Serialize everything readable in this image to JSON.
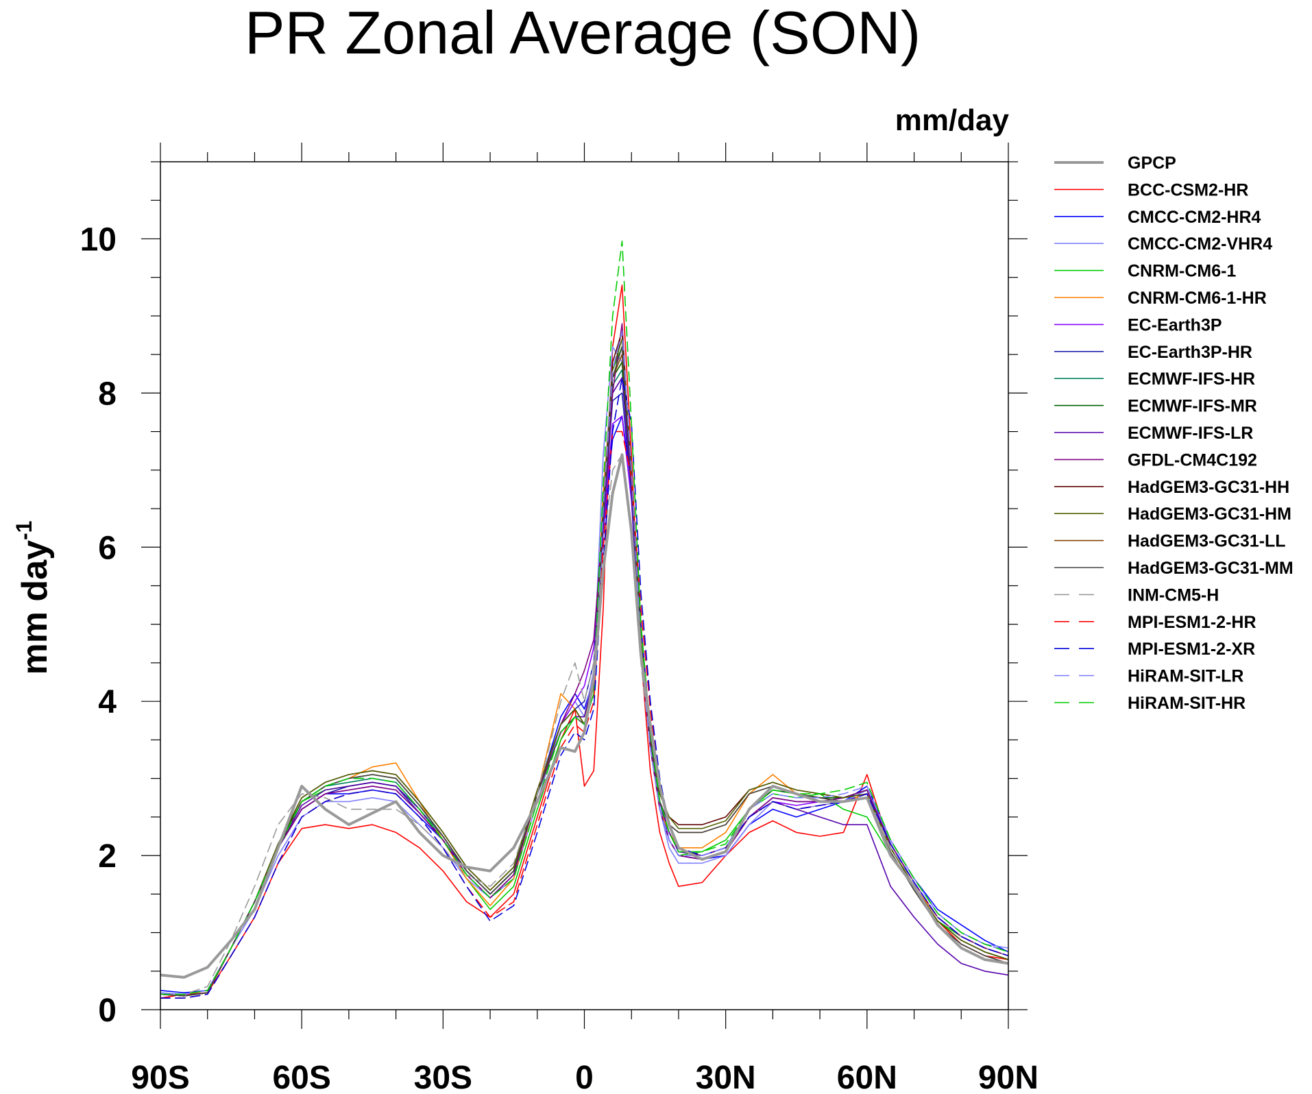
{
  "chart_data": {
    "type": "line",
    "title": "PR Zonal Average (SON)",
    "units_label": "mm/day",
    "ylabel_main": "mm day",
    "ylabel_sup": "-1",
    "xlim": [
      -90,
      90
    ],
    "ylim": [
      0,
      11
    ],
    "y_ticks": [
      0,
      2,
      4,
      6,
      8,
      10
    ],
    "x_ticks": [
      -90,
      -60,
      -30,
      0,
      30,
      60,
      90
    ],
    "x_tick_labels": [
      "90S",
      "60S",
      "30S",
      "0",
      "30N",
      "60N",
      "90N"
    ],
    "grid": false,
    "legend_position": "right",
    "x": [
      -90,
      -85,
      -80,
      -75,
      -70,
      -65,
      -60,
      -55,
      -50,
      -45,
      -40,
      -35,
      -30,
      -25,
      -20,
      -15,
      -10,
      -5,
      -2,
      0,
      2,
      4,
      6,
      8,
      10,
      12,
      14,
      16,
      18,
      20,
      25,
      30,
      35,
      40,
      45,
      50,
      55,
      60,
      65,
      70,
      75,
      80,
      85,
      90
    ],
    "series": [
      {
        "name": "GPCP",
        "color": "#999999",
        "dash": "solid",
        "width": 4,
        "values": [
          0.45,
          0.42,
          0.55,
          0.9,
          1.3,
          2.1,
          2.9,
          2.6,
          2.4,
          2.55,
          2.7,
          2.3,
          2.0,
          1.85,
          1.8,
          2.1,
          2.7,
          3.4,
          3.35,
          3.6,
          4.3,
          5.7,
          6.7,
          7.2,
          6.2,
          4.6,
          3.7,
          2.9,
          2.4,
          2.1,
          1.95,
          2.05,
          2.6,
          2.9,
          2.8,
          2.7,
          2.7,
          2.75,
          2.0,
          1.6,
          1.1,
          0.8,
          0.65,
          0.6
        ]
      },
      {
        "name": "BCC-CSM2-HR",
        "color": "#ff0000",
        "dash": "solid",
        "width": 1.6,
        "values": [
          0.15,
          0.2,
          0.22,
          0.7,
          1.2,
          1.9,
          2.35,
          2.4,
          2.35,
          2.4,
          2.3,
          2.1,
          1.8,
          1.4,
          1.2,
          1.5,
          2.5,
          3.5,
          3.9,
          2.9,
          3.1,
          5.2,
          8.6,
          9.4,
          7.2,
          4.6,
          3.1,
          2.3,
          1.9,
          1.6,
          1.65,
          2.0,
          2.3,
          2.45,
          2.3,
          2.25,
          2.3,
          3.05,
          2.1,
          1.6,
          1.15,
          0.85,
          0.7,
          0.65
        ]
      },
      {
        "name": "CMCC-CM2-HR4",
        "color": "#0000ff",
        "dash": "solid",
        "width": 1.6,
        "values": [
          0.25,
          0.22,
          0.25,
          0.8,
          1.4,
          2.1,
          2.6,
          2.8,
          2.8,
          2.85,
          2.8,
          2.5,
          2.2,
          1.8,
          1.5,
          1.8,
          2.8,
          3.8,
          4.1,
          3.9,
          4.3,
          6.2,
          7.4,
          7.7,
          6.8,
          5.0,
          3.6,
          2.7,
          2.2,
          2.0,
          1.95,
          2.0,
          2.4,
          2.6,
          2.5,
          2.6,
          2.7,
          2.9,
          2.2,
          1.7,
          1.3,
          1.1,
          0.9,
          0.75
        ]
      },
      {
        "name": "CMCC-CM2-VHR4",
        "color": "#8080ff",
        "dash": "solid",
        "width": 1.6,
        "values": [
          0.22,
          0.2,
          0.25,
          0.8,
          1.3,
          2.0,
          2.5,
          2.7,
          2.7,
          2.75,
          2.7,
          2.4,
          2.1,
          1.7,
          1.45,
          1.7,
          2.7,
          3.7,
          4.0,
          3.8,
          4.4,
          7.2,
          8.6,
          8.4,
          6.7,
          4.6,
          3.4,
          2.6,
          2.1,
          1.9,
          1.9,
          2.0,
          2.4,
          2.7,
          2.6,
          2.65,
          2.7,
          2.85,
          2.2,
          1.7,
          1.25,
          1.0,
          0.85,
          0.8
        ]
      },
      {
        "name": "CNRM-CM6-1",
        "color": "#00cc00",
        "dash": "solid",
        "width": 1.6,
        "values": [
          0.2,
          0.18,
          0.22,
          0.8,
          1.4,
          2.1,
          2.7,
          2.85,
          2.9,
          2.95,
          2.9,
          2.6,
          2.2,
          1.7,
          1.3,
          1.6,
          2.6,
          3.5,
          3.8,
          3.7,
          4.1,
          6.5,
          8.3,
          8.6,
          7.0,
          4.8,
          3.4,
          2.6,
          2.2,
          2.0,
          2.05,
          2.2,
          2.6,
          2.8,
          2.75,
          2.8,
          2.6,
          2.5,
          2.0,
          1.6,
          1.15,
          0.95,
          0.8,
          0.7
        ]
      },
      {
        "name": "CNRM-CM6-1-HR",
        "color": "#ff8000",
        "dash": "solid",
        "width": 1.6,
        "values": [
          0.2,
          0.18,
          0.22,
          0.8,
          1.4,
          2.1,
          2.7,
          2.9,
          3.0,
          3.15,
          3.2,
          2.7,
          2.2,
          1.7,
          1.35,
          1.7,
          2.8,
          4.1,
          3.9,
          3.7,
          4.3,
          6.7,
          8.2,
          8.4,
          6.8,
          4.6,
          3.4,
          2.6,
          2.3,
          2.1,
          2.1,
          2.3,
          2.8,
          3.05,
          2.8,
          2.75,
          2.7,
          2.8,
          2.1,
          1.6,
          1.2,
          0.95,
          0.8,
          0.7
        ]
      },
      {
        "name": "EC-Earth3P",
        "color": "#8800ff",
        "dash": "solid",
        "width": 1.6,
        "values": [
          0.2,
          0.18,
          0.22,
          0.8,
          1.4,
          2.1,
          2.6,
          2.8,
          2.85,
          2.9,
          2.85,
          2.55,
          2.2,
          1.75,
          1.45,
          1.75,
          2.8,
          3.7,
          4.0,
          4.2,
          4.7,
          6.2,
          7.6,
          7.7,
          6.6,
          4.6,
          3.4,
          2.6,
          2.2,
          2.0,
          1.95,
          2.05,
          2.5,
          2.7,
          2.65,
          2.7,
          2.75,
          2.85,
          2.15,
          1.65,
          1.2,
          0.95,
          0.8,
          0.7
        ]
      },
      {
        "name": "EC-Earth3P-HR",
        "color": "#2020b0",
        "dash": "solid",
        "width": 1.6,
        "values": [
          0.2,
          0.18,
          0.22,
          0.8,
          1.4,
          2.1,
          2.6,
          2.8,
          2.9,
          2.95,
          2.9,
          2.55,
          2.2,
          1.75,
          1.45,
          1.75,
          2.8,
          3.7,
          3.9,
          4.0,
          4.5,
          6.3,
          7.9,
          8.0,
          6.7,
          4.6,
          3.4,
          2.6,
          2.2,
          2.0,
          1.95,
          2.05,
          2.5,
          2.75,
          2.7,
          2.7,
          2.75,
          2.85,
          2.15,
          1.65,
          1.2,
          0.95,
          0.8,
          0.7
        ]
      },
      {
        "name": "ECMWF-IFS-HR",
        "color": "#008060",
        "dash": "solid",
        "width": 1.6,
        "values": [
          0.2,
          0.18,
          0.22,
          0.8,
          1.4,
          2.15,
          2.7,
          2.9,
          2.95,
          3.0,
          2.95,
          2.6,
          2.25,
          1.8,
          1.5,
          1.8,
          2.8,
          3.6,
          3.8,
          3.8,
          4.3,
          6.4,
          8.1,
          8.3,
          6.8,
          4.7,
          3.5,
          2.7,
          2.3,
          2.05,
          2.0,
          2.1,
          2.6,
          2.85,
          2.8,
          2.75,
          2.75,
          2.85,
          2.1,
          1.6,
          1.15,
          0.9,
          0.75,
          0.65
        ]
      },
      {
        "name": "ECMWF-IFS-MR",
        "color": "#006000",
        "dash": "solid",
        "width": 1.6,
        "values": [
          0.2,
          0.18,
          0.22,
          0.8,
          1.4,
          2.15,
          2.7,
          2.9,
          3.0,
          3.05,
          3.0,
          2.65,
          2.25,
          1.8,
          1.5,
          1.8,
          2.8,
          3.6,
          3.8,
          3.8,
          4.3,
          6.5,
          8.2,
          8.4,
          6.9,
          4.7,
          3.5,
          2.7,
          2.3,
          2.05,
          2.0,
          2.1,
          2.6,
          2.85,
          2.8,
          2.75,
          2.75,
          2.85,
          2.1,
          1.6,
          1.15,
          0.9,
          0.75,
          0.65
        ]
      },
      {
        "name": "ECMWF-IFS-LR",
        "color": "#5500aa",
        "dash": "solid",
        "width": 1.6,
        "values": [
          0.2,
          0.18,
          0.22,
          0.8,
          1.4,
          2.1,
          2.65,
          2.85,
          2.9,
          2.95,
          2.9,
          2.6,
          2.2,
          1.8,
          1.5,
          1.8,
          2.8,
          3.6,
          3.8,
          3.8,
          4.3,
          6.4,
          8.0,
          8.2,
          6.8,
          4.7,
          3.5,
          2.7,
          2.3,
          2.05,
          2.0,
          2.1,
          2.5,
          2.7,
          2.6,
          2.5,
          2.4,
          2.4,
          1.6,
          1.2,
          0.85,
          0.6,
          0.5,
          0.45
        ]
      },
      {
        "name": "GFDL-CM4C192",
        "color": "#800080",
        "dash": "solid",
        "width": 1.6,
        "values": [
          0.2,
          0.18,
          0.22,
          0.8,
          1.4,
          2.1,
          2.6,
          2.8,
          2.85,
          2.9,
          2.85,
          2.55,
          2.2,
          1.75,
          1.45,
          1.75,
          2.8,
          3.7,
          4.1,
          4.4,
          4.8,
          6.4,
          8.0,
          8.9,
          6.9,
          4.6,
          3.4,
          2.6,
          2.2,
          2.0,
          1.95,
          2.05,
          2.5,
          2.75,
          2.7,
          2.7,
          2.75,
          2.85,
          2.15,
          1.65,
          1.2,
          0.95,
          0.8,
          0.7
        ]
      },
      {
        "name": "HadGEM3-GC31-HH",
        "color": "#600000",
        "dash": "solid",
        "width": 1.6,
        "values": [
          0.2,
          0.18,
          0.22,
          0.8,
          1.4,
          2.15,
          2.75,
          2.95,
          3.05,
          3.1,
          3.05,
          2.7,
          2.3,
          1.85,
          1.55,
          1.85,
          2.85,
          3.7,
          3.9,
          3.7,
          4.2,
          6.5,
          8.4,
          8.8,
          7.0,
          4.8,
          3.6,
          2.8,
          2.5,
          2.4,
          2.4,
          2.5,
          2.85,
          2.95,
          2.85,
          2.8,
          2.75,
          2.8,
          2.1,
          1.6,
          1.15,
          0.9,
          0.75,
          0.65
        ]
      },
      {
        "name": "HadGEM3-GC31-HM",
        "color": "#506000",
        "dash": "solid",
        "width": 1.6,
        "values": [
          0.2,
          0.18,
          0.22,
          0.8,
          1.4,
          2.15,
          2.75,
          2.95,
          3.05,
          3.1,
          3.05,
          2.7,
          2.3,
          1.85,
          1.55,
          1.85,
          2.85,
          3.7,
          3.9,
          3.7,
          4.2,
          6.5,
          8.3,
          8.7,
          7.0,
          4.8,
          3.6,
          2.8,
          2.5,
          2.35,
          2.35,
          2.45,
          2.85,
          2.95,
          2.85,
          2.8,
          2.75,
          2.8,
          2.1,
          1.6,
          1.15,
          0.9,
          0.75,
          0.65
        ]
      },
      {
        "name": "HadGEM3-GC31-LL",
        "color": "#804000",
        "dash": "solid",
        "width": 1.6,
        "values": [
          0.2,
          0.18,
          0.22,
          0.8,
          1.4,
          2.1,
          2.7,
          2.9,
          3.0,
          3.05,
          3.0,
          2.65,
          2.25,
          1.8,
          1.5,
          1.8,
          2.8,
          3.6,
          3.8,
          3.7,
          4.2,
          6.4,
          8.2,
          8.5,
          6.9,
          4.7,
          3.5,
          2.7,
          2.4,
          2.3,
          2.3,
          2.4,
          2.8,
          2.9,
          2.8,
          2.75,
          2.7,
          2.75,
          2.05,
          1.55,
          1.1,
          0.85,
          0.7,
          0.6
        ]
      },
      {
        "name": "HadGEM3-GC31-MM",
        "color": "#444444",
        "dash": "solid",
        "width": 1.6,
        "values": [
          0.2,
          0.18,
          0.22,
          0.8,
          1.4,
          2.1,
          2.7,
          2.9,
          3.0,
          3.05,
          3.0,
          2.65,
          2.25,
          1.8,
          1.5,
          1.8,
          2.8,
          3.6,
          3.8,
          3.7,
          4.2,
          6.4,
          8.2,
          8.6,
          6.9,
          4.7,
          3.5,
          2.7,
          2.4,
          2.3,
          2.3,
          2.4,
          2.8,
          2.9,
          2.8,
          2.75,
          2.7,
          2.75,
          2.05,
          1.55,
          1.1,
          0.85,
          0.7,
          0.6
        ]
      },
      {
        "name": "INM-CM5-H",
        "color": "#999999",
        "dash": "dash",
        "width": 1.6,
        "values": [
          0.2,
          0.2,
          0.3,
          0.9,
          1.6,
          2.4,
          2.8,
          2.75,
          2.6,
          2.6,
          2.6,
          2.4,
          2.1,
          1.75,
          1.6,
          1.9,
          2.8,
          4.0,
          4.5,
          4.0,
          4.5,
          6.0,
          7.0,
          7.2,
          6.2,
          4.5,
          3.4,
          2.6,
          2.2,
          2.0,
          2.0,
          2.1,
          2.5,
          2.7,
          2.6,
          2.65,
          2.7,
          2.8,
          2.1,
          1.65,
          1.2,
          0.95,
          0.8,
          0.7
        ]
      },
      {
        "name": "MPI-ESM1-2-HR",
        "color": "#ff0000",
        "dash": "dash",
        "width": 1.6,
        "values": [
          0.15,
          0.15,
          0.2,
          0.7,
          1.2,
          1.9,
          2.5,
          2.7,
          2.8,
          2.85,
          2.8,
          2.5,
          2.1,
          1.6,
          1.2,
          1.4,
          2.4,
          3.4,
          3.7,
          3.6,
          4.0,
          6.0,
          7.5,
          7.5,
          6.9,
          5.2,
          3.9,
          2.9,
          2.4,
          2.1,
          2.0,
          2.1,
          2.5,
          2.7,
          2.6,
          2.65,
          2.7,
          2.8,
          2.15,
          1.65,
          1.2,
          0.95,
          0.8,
          0.7
        ]
      },
      {
        "name": "MPI-ESM1-2-XR",
        "color": "#0000dd",
        "dash": "dash",
        "width": 1.6,
        "values": [
          0.15,
          0.15,
          0.2,
          0.7,
          1.2,
          1.9,
          2.5,
          2.7,
          2.8,
          2.85,
          2.8,
          2.5,
          2.1,
          1.6,
          1.15,
          1.35,
          2.3,
          3.3,
          3.6,
          3.5,
          3.9,
          5.8,
          7.5,
          8.2,
          7.6,
          5.4,
          4.0,
          3.0,
          2.4,
          2.1,
          2.0,
          2.1,
          2.5,
          2.7,
          2.6,
          2.65,
          2.7,
          2.8,
          2.15,
          1.65,
          1.2,
          0.95,
          0.8,
          0.7
        ]
      },
      {
        "name": "HiRAM-SIT-LR",
        "color": "#8080ff",
        "dash": "dash",
        "width": 1.6,
        "values": [
          0.2,
          0.2,
          0.25,
          0.8,
          1.4,
          2.1,
          2.7,
          2.9,
          3.0,
          3.0,
          2.95,
          2.6,
          2.2,
          1.75,
          1.45,
          1.7,
          2.7,
          3.6,
          3.8,
          3.7,
          4.2,
          6.5,
          8.3,
          8.8,
          7.0,
          4.7,
          3.4,
          2.6,
          2.2,
          2.0,
          2.0,
          2.1,
          2.6,
          2.8,
          2.75,
          2.75,
          2.8,
          2.9,
          2.2,
          1.7,
          1.25,
          1.0,
          0.85,
          0.75
        ]
      },
      {
        "name": "HiRAM-SIT-HR",
        "color": "#00cc00",
        "dash": "dash",
        "width": 1.6,
        "values": [
          0.2,
          0.2,
          0.25,
          0.8,
          1.4,
          2.1,
          2.7,
          2.9,
          3.0,
          3.0,
          2.95,
          2.6,
          2.2,
          1.75,
          1.45,
          1.7,
          2.7,
          3.6,
          3.8,
          3.7,
          4.2,
          6.8,
          9.0,
          9.97,
          7.6,
          5.0,
          3.6,
          2.7,
          2.3,
          2.05,
          2.05,
          2.15,
          2.6,
          2.85,
          2.8,
          2.8,
          2.85,
          2.95,
          2.2,
          1.7,
          1.25,
          1.0,
          0.85,
          0.75
        ]
      }
    ]
  }
}
